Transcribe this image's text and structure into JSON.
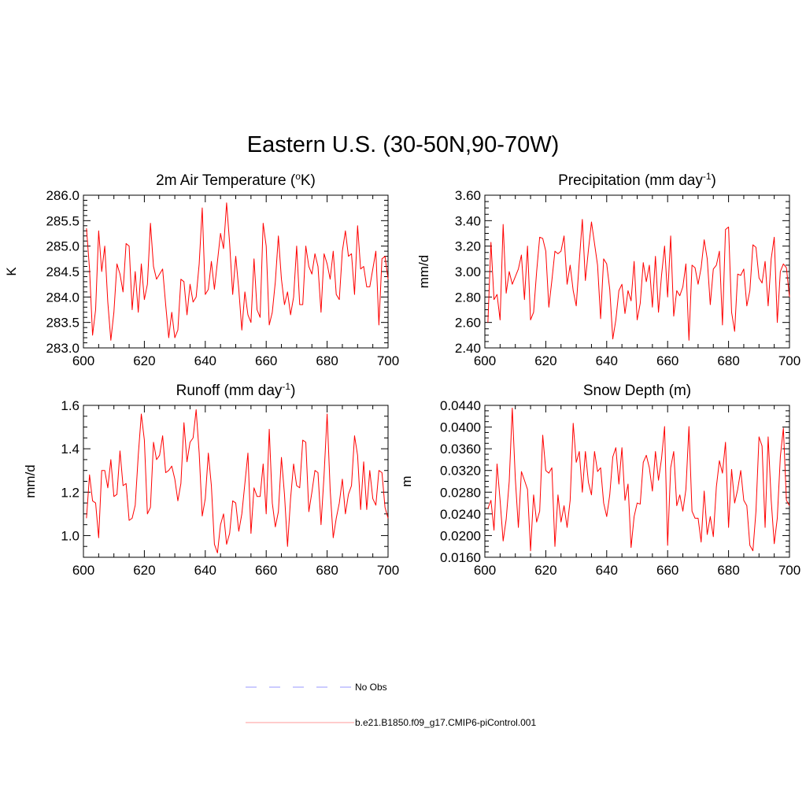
{
  "figure_title": "Eastern U.S. (30-50N,90-70W)",
  "colors": {
    "model": "#ff0000",
    "obs": "#9999ff",
    "legend_model": "#ff9999",
    "axis": "#000000"
  },
  "legend": {
    "obs_label": "No Obs",
    "model_label": "b.e21.B1850.f09_g17.CMIP6-piControl.001"
  },
  "chart_data": [
    {
      "id": "temp",
      "type": "line",
      "title": "2m Air Temperature (",
      "title_sup": "o",
      "title_suffix": "K)",
      "xlabel": "",
      "ylabel": "K",
      "xlim": [
        600,
        700
      ],
      "ylim": [
        283.0,
        286.0
      ],
      "xticks": [
        600,
        620,
        640,
        660,
        680,
        700
      ],
      "xtick_labels": [
        "600",
        "620",
        "640",
        "660",
        "680",
        "700"
      ],
      "yticks": [
        283.0,
        283.5,
        284.0,
        284.5,
        285.0,
        285.5,
        286.0
      ],
      "ytick_labels": [
        "283.0",
        "283.5",
        "284.0",
        "284.5",
        "285.0",
        "285.5",
        "286.0"
      ],
      "yminor": 0.1,
      "series": [
        {
          "name": "b.e21.B1850.f09_g17.CMIP6-piControl.001",
          "x_start": 601,
          "values": [
            285.35,
            284.55,
            283.25,
            283.75,
            285.3,
            284.5,
            285.0,
            283.9,
            283.15,
            283.7,
            284.65,
            284.45,
            284.1,
            285.05,
            285.0,
            283.75,
            284.5,
            283.7,
            284.65,
            283.95,
            284.25,
            285.45,
            284.6,
            284.35,
            284.45,
            284.55,
            283.85,
            283.2,
            283.7,
            283.2,
            283.35,
            284.35,
            284.3,
            283.65,
            284.25,
            283.9,
            284.0,
            284.65,
            285.75,
            284.05,
            284.15,
            284.7,
            284.15,
            284.7,
            285.25,
            284.95,
            285.85,
            285.05,
            284.05,
            284.8,
            284.15,
            283.35,
            284.1,
            283.65,
            283.5,
            284.75,
            283.75,
            283.6,
            285.45,
            285.0,
            283.45,
            283.7,
            284.3,
            285.2,
            284.35,
            283.85,
            284.1,
            283.65,
            284.0,
            285.0,
            283.85,
            283.85,
            285.0,
            284.6,
            284.45,
            284.85,
            284.6,
            283.7,
            284.85,
            284.65,
            284.35,
            284.9,
            284.05,
            283.95,
            284.9,
            285.3,
            284.8,
            284.85,
            284.05,
            285.4,
            284.55,
            284.6,
            284.2,
            284.2,
            284.55,
            284.9,
            283.45,
            284.75,
            284.8,
            284.35
          ]
        }
      ]
    },
    {
      "id": "precip",
      "type": "line",
      "title": "Precipitation (mm day",
      "title_sup": "-1",
      "title_suffix": ")",
      "xlabel": "",
      "ylabel": "mm/d",
      "xlim": [
        600,
        700
      ],
      "ylim": [
        2.4,
        3.6
      ],
      "xticks": [
        600,
        620,
        640,
        660,
        680,
        700
      ],
      "xtick_labels": [
        "600",
        "620",
        "640",
        "660",
        "680",
        "700"
      ],
      "yticks": [
        2.4,
        2.6,
        2.8,
        3.0,
        3.2,
        3.4,
        3.6
      ],
      "ytick_labels": [
        "2.40",
        "2.60",
        "2.80",
        "3.00",
        "3.20",
        "3.40",
        "3.60"
      ],
      "yminor": 0.05,
      "series": [
        {
          "name": "b.e21.B1850.f09_g17.CMIP6-piControl.001",
          "x_start": 601,
          "values": [
            2.6,
            3.23,
            2.78,
            2.82,
            2.62,
            3.37,
            2.83,
            3.0,
            2.9,
            2.96,
            3.02,
            3.13,
            2.78,
            3.2,
            2.62,
            2.68,
            3.0,
            3.27,
            3.26,
            3.16,
            2.72,
            2.93,
            3.16,
            3.14,
            3.16,
            3.28,
            2.9,
            3.05,
            2.85,
            2.73,
            3.08,
            3.41,
            2.93,
            3.17,
            3.39,
            3.22,
            3.05,
            2.63,
            3.1,
            3.06,
            2.86,
            2.47,
            2.62,
            2.85,
            2.9,
            2.67,
            2.85,
            2.77,
            3.08,
            2.62,
            2.75,
            3.07,
            2.92,
            3.05,
            2.72,
            3.12,
            2.68,
            2.97,
            3.2,
            2.8,
            3.28,
            2.65,
            2.85,
            2.81,
            2.88,
            3.06,
            2.46,
            3.05,
            3.03,
            2.9,
            3.03,
            3.25,
            3.1,
            2.74,
            3.02,
            3.05,
            3.16,
            2.58,
            3.33,
            3.35,
            2.68,
            2.53,
            2.98,
            2.97,
            3.02,
            2.73,
            2.85,
            3.21,
            3.19,
            2.95,
            2.91,
            3.08,
            2.73,
            3.1,
            3.27,
            2.6,
            3.0,
            3.06,
            3.03,
            2.8
          ]
        }
      ]
    },
    {
      "id": "runoff",
      "type": "line",
      "title": "Runoff (mm day",
      "title_sup": "-1",
      "title_suffix": ")",
      "xlabel": "",
      "ylabel": "mm/d",
      "xlim": [
        600,
        700
      ],
      "ylim": [
        0.9,
        1.6
      ],
      "xticks": [
        600,
        620,
        640,
        660,
        680,
        700
      ],
      "xtick_labels": [
        "600",
        "620",
        "640",
        "660",
        "680",
        "700"
      ],
      "yticks": [
        1.0,
        1.2,
        1.4,
        1.6
      ],
      "ytick_labels": [
        "1.0",
        "1.2",
        "1.4",
        "1.6"
      ],
      "yminor": 0.05,
      "series": [
        {
          "name": "b.e21.B1850.f09_g17.CMIP6-piControl.001",
          "x_start": 601,
          "values": [
            1.08,
            1.28,
            1.16,
            1.15,
            0.99,
            1.3,
            1.3,
            1.22,
            1.35,
            1.18,
            1.19,
            1.39,
            1.23,
            1.24,
            1.07,
            1.08,
            1.14,
            1.37,
            1.56,
            1.44,
            1.1,
            1.13,
            1.43,
            1.35,
            1.37,
            1.46,
            1.29,
            1.3,
            1.32,
            1.26,
            1.16,
            1.24,
            1.52,
            1.34,
            1.43,
            1.45,
            1.58,
            1.38,
            1.09,
            1.17,
            1.38,
            1.23,
            0.96,
            0.92,
            1.05,
            1.1,
            0.96,
            1.01,
            1.16,
            1.15,
            1.02,
            1.1,
            1.24,
            1.38,
            1.01,
            1.22,
            1.18,
            1.18,
            1.33,
            1.1,
            1.49,
            1.15,
            1.04,
            1.11,
            1.36,
            1.19,
            0.95,
            1.17,
            1.33,
            1.23,
            1.22,
            1.44,
            1.43,
            1.11,
            1.2,
            1.3,
            1.29,
            1.05,
            1.28,
            1.56,
            1.21,
            0.99,
            1.08,
            1.15,
            1.26,
            1.1,
            1.19,
            1.23,
            1.46,
            1.37,
            1.12,
            1.34,
            1.12,
            1.3,
            1.17,
            1.14,
            1.3,
            1.29,
            1.13,
            1.08
          ]
        }
      ]
    },
    {
      "id": "snow",
      "type": "line",
      "title": "Snow Depth (m)",
      "title_sup": "",
      "title_suffix": "",
      "xlabel": "",
      "ylabel": "m",
      "xlim": [
        600,
        700
      ],
      "ylim": [
        0.016,
        0.044
      ],
      "xticks": [
        600,
        620,
        640,
        660,
        680,
        700
      ],
      "xtick_labels": [
        "600",
        "620",
        "640",
        "660",
        "680",
        "700"
      ],
      "yticks": [
        0.016,
        0.02,
        0.024,
        0.028,
        0.032,
        0.036,
        0.04,
        0.044
      ],
      "ytick_labels": [
        "0.0160",
        "0.0200",
        "0.0240",
        "0.0280",
        "0.0320",
        "0.0360",
        "0.0400",
        "0.0440"
      ],
      "yminor": 0.001,
      "series": [
        {
          "name": "b.e21.B1850.f09_g17.CMIP6-piControl.001",
          "x_start": 601,
          "values": [
            0.025,
            0.0265,
            0.021,
            0.0332,
            0.0265,
            0.019,
            0.023,
            0.03,
            0.0435,
            0.0305,
            0.0215,
            0.0318,
            0.0302,
            0.0285,
            0.0172,
            0.0275,
            0.0225,
            0.0245,
            0.0385,
            0.032,
            0.0315,
            0.0325,
            0.018,
            0.0275,
            0.0225,
            0.0255,
            0.0215,
            0.0265,
            0.0407,
            0.0335,
            0.0355,
            0.028,
            0.0355,
            0.0298,
            0.0275,
            0.0355,
            0.0318,
            0.0325,
            0.026,
            0.0235,
            0.0275,
            0.0345,
            0.0362,
            0.0295,
            0.0362,
            0.0265,
            0.0295,
            0.0178,
            0.0235,
            0.026,
            0.0258,
            0.0335,
            0.0348,
            0.0325,
            0.0282,
            0.0355,
            0.0302,
            0.0342,
            0.0401,
            0.0182,
            0.0325,
            0.0355,
            0.0255,
            0.0275,
            0.0245,
            0.0285,
            0.0401,
            0.0245,
            0.0232,
            0.0232,
            0.0188,
            0.0282,
            0.0202,
            0.0235,
            0.0198,
            0.029,
            0.0338,
            0.0315,
            0.0372,
            0.0215,
            0.0322,
            0.026,
            0.0285,
            0.032,
            0.0265,
            0.0255,
            0.0182,
            0.0172,
            0.0245,
            0.0382,
            0.0365,
            0.0215,
            0.0382,
            0.0265,
            0.0185,
            0.0232,
            0.0345,
            0.0398,
            0.0265,
            0.0255
          ]
        }
      ]
    }
  ]
}
